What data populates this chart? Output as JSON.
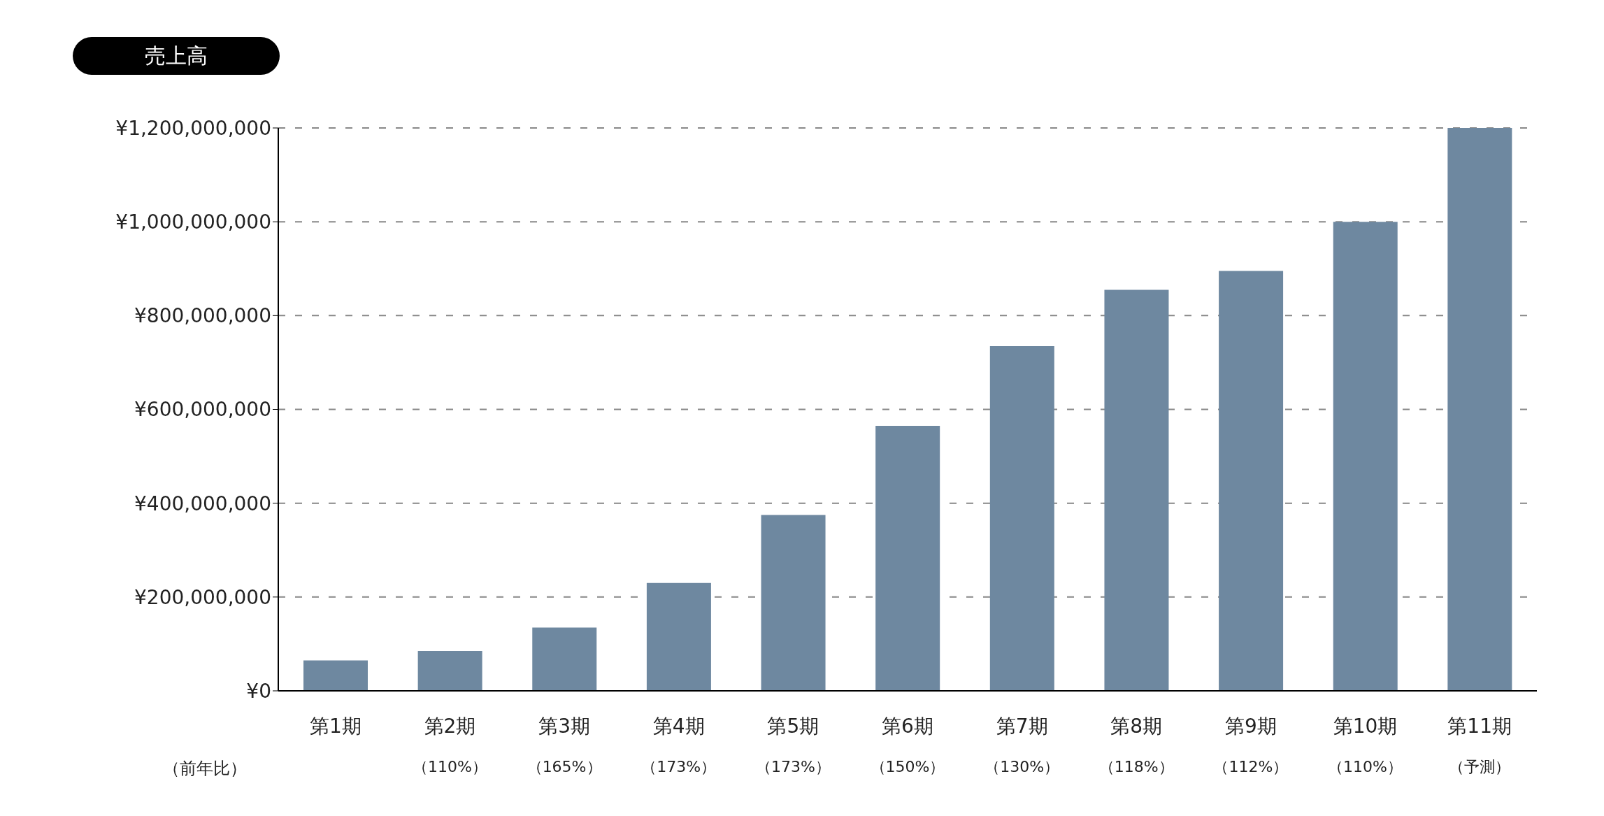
{
  "chart_data": {
    "type": "bar",
    "title": "売上高",
    "categories": [
      "第1期",
      "第2期",
      "第3期",
      "第4期",
      "第5期",
      "第6期",
      "第7期",
      "第8期",
      "第9期",
      "第10期",
      "第11期"
    ],
    "values": [
      65000000,
      85000000,
      135000000,
      230000000,
      375000000,
      565000000,
      735000000,
      855000000,
      895000000,
      1000000000,
      1200000000
    ],
    "color": "#6e88a0",
    "ylim": [
      0,
      1200000000
    ],
    "yticks": [
      {
        "value": 0,
        "label": "¥0"
      },
      {
        "value": 200000000,
        "label": "¥200,000,000"
      },
      {
        "value": 400000000,
        "label": "¥400,000,000"
      },
      {
        "value": 600000000,
        "label": "¥600,000,000"
      },
      {
        "value": 800000000,
        "label": "¥800,000,000"
      },
      {
        "value": 1000000000,
        "label": "¥1,000,000,000"
      },
      {
        "value": 1200000000,
        "label": "¥1,200,000,000"
      }
    ],
    "grid": "y",
    "annotations": [
      "（前年比）",
      "（110%）",
      "（165%）",
      "（173%）",
      "（173%）",
      "（150%）",
      "（130%）",
      "（118%）",
      "（112%）",
      "（110%）",
      "（予測）"
    ]
  }
}
